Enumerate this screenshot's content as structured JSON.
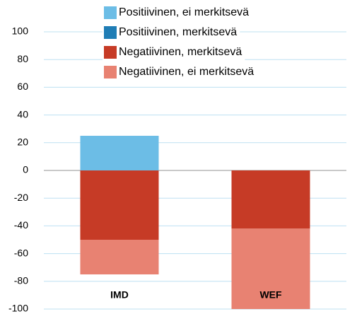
{
  "chart_data": {
    "type": "stacked-bar",
    "categories": [
      "IMD",
      "WEF"
    ],
    "series": [
      {
        "name": "Positiivinen, ei merkitsevä",
        "color": "#6cbde6",
        "values": [
          25,
          0
        ]
      },
      {
        "name": "Positiivinen, merkitsevä",
        "color": "#1f7db5",
        "values": [
          0,
          0
        ]
      },
      {
        "name": "Negatiivinen, merkitsevä",
        "color": "#c63b26",
        "values": [
          -50,
          -42
        ]
      },
      {
        "name": "Negatiivinen, ei merkitsevä",
        "color": "#e88272",
        "values": [
          -25,
          -58
        ]
      }
    ],
    "ylim": [
      -100,
      100
    ],
    "yticks": [
      -100,
      -80,
      -60,
      -40,
      -20,
      0,
      20,
      40,
      60,
      80,
      100
    ],
    "grid": true
  }
}
